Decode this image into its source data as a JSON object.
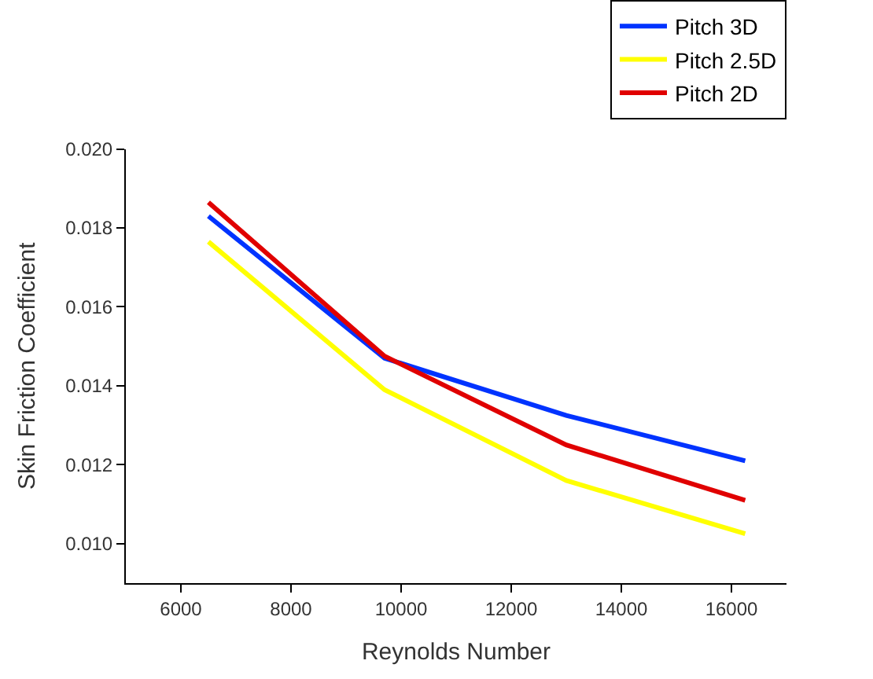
{
  "chart_data": {
    "type": "line",
    "xlabel": "Reynolds Number",
    "ylabel": "Skin Friction Coefficient",
    "x": [
      6500,
      9700,
      13000,
      16250
    ],
    "series": [
      {
        "name": "Pitch 3D",
        "color": "#0033ff",
        "values": [
          0.0183,
          0.0147,
          0.01325,
          0.0121
        ]
      },
      {
        "name": "Pitch 2.5D",
        "color": "#ffff00",
        "values": [
          0.01765,
          0.0139,
          0.0116,
          0.01025
        ]
      },
      {
        "name": "Pitch 2D",
        "color": "#e00000",
        "values": [
          0.01865,
          0.01475,
          0.0125,
          0.0111
        ]
      }
    ],
    "xlim": [
      5000,
      17000
    ],
    "xticks": [
      6000,
      8000,
      10000,
      12000,
      14000,
      16000
    ],
    "ylim": [
      0.009,
      0.02
    ],
    "yticks": [
      {
        "value": 0.01,
        "label": "0.010"
      },
      {
        "value": 0.012,
        "label": "0.012"
      },
      {
        "value": 0.014,
        "label": "0.014"
      },
      {
        "value": 0.016,
        "label": "0.016"
      },
      {
        "value": 0.018,
        "label": "0.018"
      },
      {
        "value": 0.02,
        "label": "0.020"
      }
    ],
    "legend": "top right",
    "marker": "none",
    "line_style": "solid"
  }
}
